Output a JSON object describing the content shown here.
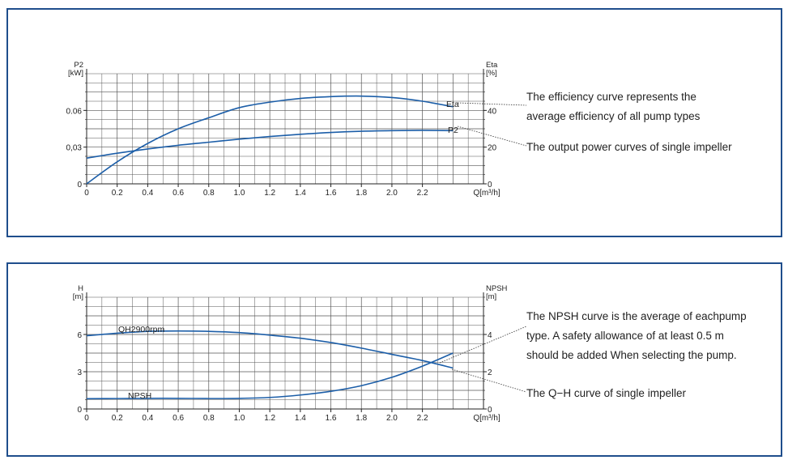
{
  "chart_data": [
    {
      "type": "line",
      "x_label": "Q[m³/h]",
      "x_ticks": [
        "0",
        "0.2",
        "0.4",
        "0.6",
        "0.8",
        "1.0",
        "1.2",
        "1.4",
        "1.6",
        "1.8",
        "2.0",
        "2.2"
      ],
      "xlim": [
        0,
        2.6
      ],
      "left_axis": {
        "label_line1": "P2",
        "label_line2": "[kW]",
        "ticks": [
          "0",
          "0,03",
          "0.06"
        ],
        "ylim": [
          0,
          0.09
        ]
      },
      "right_axis": {
        "label_line1": "Eta",
        "label_line2": "[%]",
        "ticks": [
          "0",
          "20",
          "40"
        ],
        "ylim": [
          0,
          60
        ]
      },
      "grid": true,
      "series": [
        {
          "name": "Eta",
          "axis": "right",
          "x": [
            0,
            0.2,
            0.4,
            0.6,
            0.8,
            1.0,
            1.2,
            1.4,
            1.6,
            1.8,
            2.0,
            2.2,
            2.4
          ],
          "y": [
            0,
            12,
            22,
            30,
            36,
            41.5,
            44.5,
            46.5,
            47.5,
            47.8,
            47,
            45,
            42
          ]
        },
        {
          "name": "P2",
          "axis": "left",
          "x": [
            0,
            0.2,
            0.4,
            0.6,
            0.8,
            1.0,
            1.2,
            1.4,
            1.6,
            1.8,
            2.0,
            2.2,
            2.4
          ],
          "y": [
            0.021,
            0.025,
            0.0285,
            0.0315,
            0.034,
            0.0365,
            0.0387,
            0.0405,
            0.042,
            0.043,
            0.0435,
            0.0437,
            0.0435
          ]
        }
      ],
      "annotations": [
        "The efficiency curve represents the",
        "average efficiency of all pump types",
        "The output power curves of single impeller"
      ],
      "color": "#1c5ea8"
    },
    {
      "type": "line",
      "x_label": "Q[m³/h]",
      "x_ticks": [
        "0",
        "0.2",
        "0.4",
        "0.6",
        "0.8",
        "1.0",
        "1.2",
        "1.4",
        "1.6",
        "1.8",
        "2.0",
        "2.2"
      ],
      "xlim": [
        0,
        2.6
      ],
      "left_axis": {
        "label_line1": "H",
        "label_line2": "[m]",
        "ticks": [
          "0",
          "3",
          "6"
        ],
        "ylim": [
          0,
          9
        ]
      },
      "right_axis": {
        "label_line1": "NPSH",
        "label_line2": "[m]",
        "ticks": [
          "0",
          "2",
          "4"
        ],
        "ylim": [
          0,
          6
        ]
      },
      "grid": true,
      "series": [
        {
          "name": "QH2900rpm",
          "axis": "left",
          "x": [
            0,
            0.2,
            0.4,
            0.6,
            0.8,
            1.0,
            1.2,
            1.4,
            1.6,
            1.8,
            2.0,
            2.2,
            2.4
          ],
          "y": [
            5.9,
            6.1,
            6.25,
            6.28,
            6.25,
            6.15,
            5.95,
            5.7,
            5.35,
            4.9,
            4.4,
            3.9,
            3.3
          ]
        },
        {
          "name": "NPSH",
          "axis": "right",
          "x": [
            0,
            0.2,
            0.4,
            0.6,
            0.8,
            1.0,
            1.2,
            1.4,
            1.6,
            1.8,
            2.0,
            2.2,
            2.4
          ],
          "y": [
            0.55,
            0.56,
            0.57,
            0.57,
            0.56,
            0.57,
            0.62,
            0.75,
            0.95,
            1.25,
            1.7,
            2.3,
            3.0
          ]
        }
      ],
      "annotations": [
        "The NPSH curve is the average of eachpump",
        "type. A safety allowance of at least 0.5 m",
        "should be added When selecting the pump.",
        "The Q−H curve of single impeller"
      ],
      "color": "#1c5ea8"
    }
  ]
}
